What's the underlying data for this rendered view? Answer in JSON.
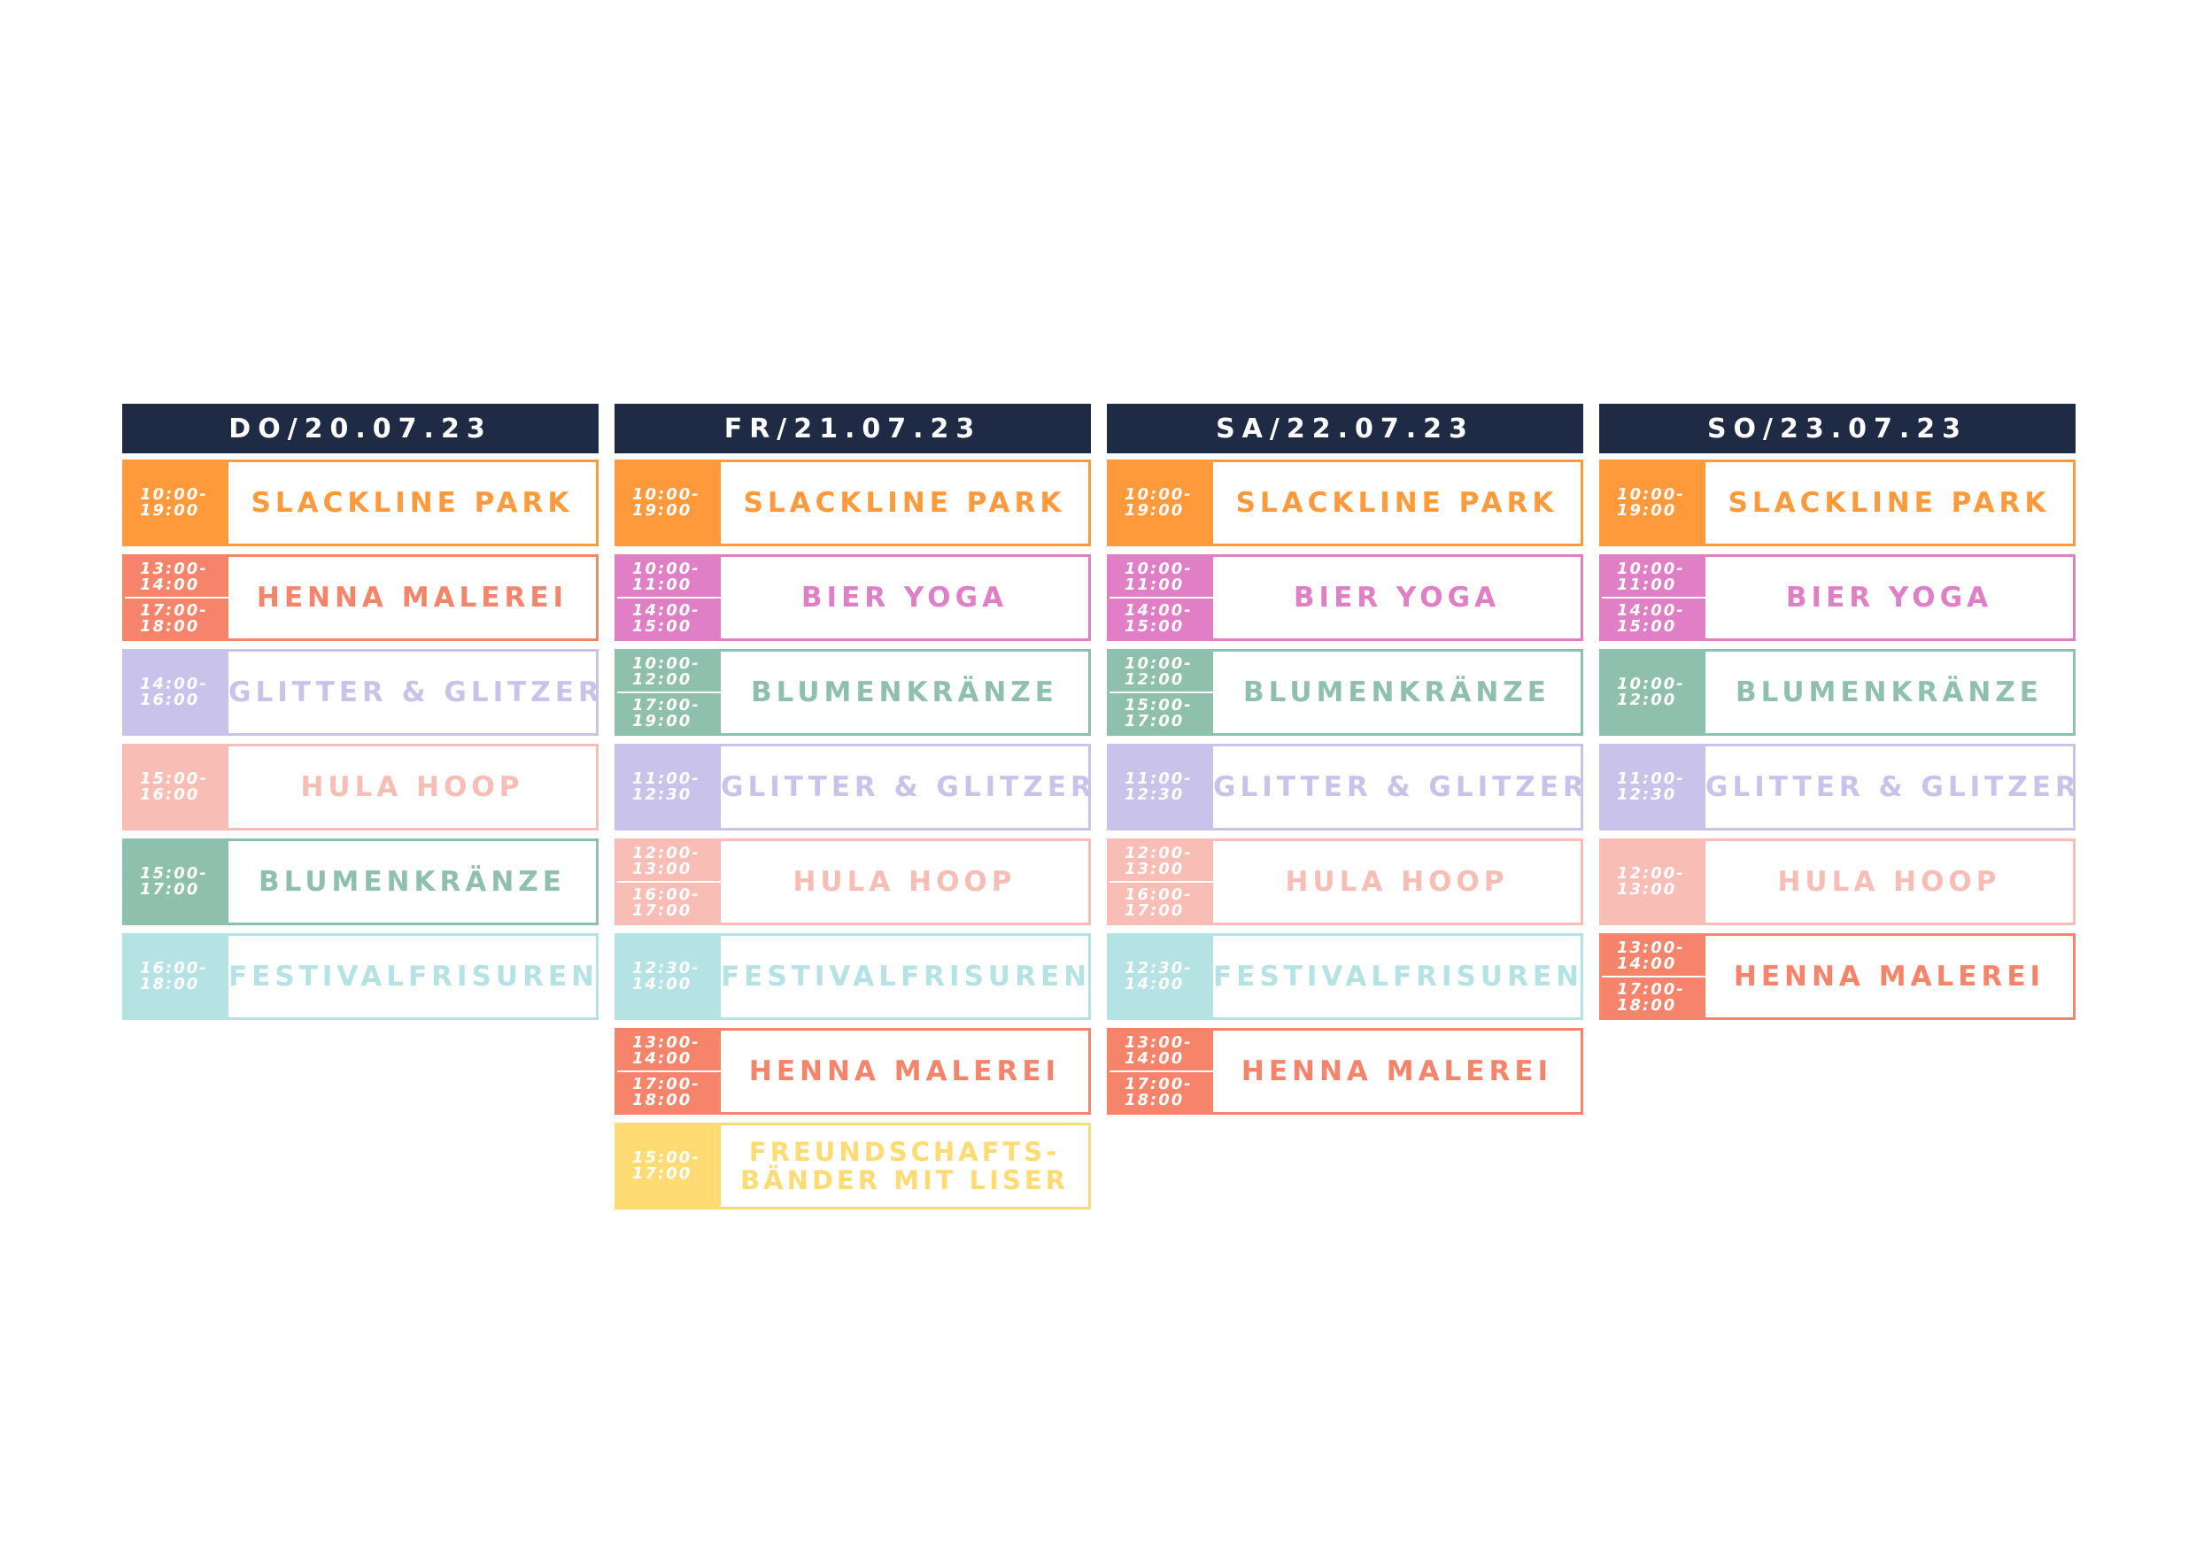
{
  "colors": {
    "header_bg": "#1f2a44",
    "slackline": "#ff9a3c",
    "henna": "#f5846a",
    "bier": "#e07fc5",
    "glitter": "#c9c3ec",
    "hula": "#f8bdb5",
    "blumen": "#8fc0ad",
    "festival": "#b5e2e3",
    "freundschaft": "#ffdc73"
  },
  "days": [
    {
      "label": "DO/20.07.23",
      "events": [
        {
          "name": [
            "SLACKLINE PARK"
          ],
          "color": "slackline",
          "slots": [
            [
              "10:00-",
              "19:00"
            ]
          ]
        },
        {
          "name": [
            "HENNA MALEREI"
          ],
          "color": "henna",
          "slots": [
            [
              "13:00-",
              "14:00"
            ],
            [
              "17:00-",
              "18:00"
            ]
          ]
        },
        {
          "name": [
            "GLITTER & GLITZER"
          ],
          "color": "glitter",
          "slots": [
            [
              "14:00-",
              "16:00"
            ]
          ]
        },
        {
          "name": [
            "HULA HOOP"
          ],
          "color": "hula",
          "slots": [
            [
              "15:00-",
              "16:00"
            ]
          ]
        },
        {
          "name": [
            "BLUMENKRÄNZE"
          ],
          "color": "blumen",
          "slots": [
            [
              "15:00-",
              "17:00"
            ]
          ]
        },
        {
          "name": [
            "FESTIVALFRISUREN"
          ],
          "color": "festival",
          "slots": [
            [
              "16:00-",
              "18:00"
            ]
          ]
        }
      ]
    },
    {
      "label": "FR/21.07.23",
      "events": [
        {
          "name": [
            "SLACKLINE PARK"
          ],
          "color": "slackline",
          "slots": [
            [
              "10:00-",
              "19:00"
            ]
          ]
        },
        {
          "name": [
            "BIER YOGA"
          ],
          "color": "bier",
          "slots": [
            [
              "10:00-",
              "11:00"
            ],
            [
              "14:00-",
              "15:00"
            ]
          ]
        },
        {
          "name": [
            "BLUMENKRÄNZE"
          ],
          "color": "blumen",
          "slots": [
            [
              "10:00-",
              "12:00"
            ],
            [
              "17:00-",
              "19:00"
            ]
          ]
        },
        {
          "name": [
            "GLITTER & GLITZER"
          ],
          "color": "glitter",
          "slots": [
            [
              "11:00-",
              "12:30"
            ]
          ]
        },
        {
          "name": [
            "HULA HOOP"
          ],
          "color": "hula",
          "slots": [
            [
              "12:00-",
              "13:00"
            ],
            [
              "16:00-",
              "17:00"
            ]
          ]
        },
        {
          "name": [
            "FESTIVALFRISUREN"
          ],
          "color": "festival",
          "slots": [
            [
              "12:30-",
              "14:00"
            ]
          ]
        },
        {
          "name": [
            "HENNA MALEREI"
          ],
          "color": "henna",
          "slots": [
            [
              "13:00-",
              "14:00"
            ],
            [
              "17:00-",
              "18:00"
            ]
          ]
        },
        {
          "name": [
            "FREUNDSCHAFTS-",
            "BÄNDER MIT LISER"
          ],
          "color": "freundschaft",
          "slots": [
            [
              "15:00-",
              "17:00"
            ]
          ]
        }
      ]
    },
    {
      "label": "SA/22.07.23",
      "events": [
        {
          "name": [
            "SLACKLINE PARK"
          ],
          "color": "slackline",
          "slots": [
            [
              "10:00-",
              "19:00"
            ]
          ]
        },
        {
          "name": [
            "BIER YOGA"
          ],
          "color": "bier",
          "slots": [
            [
              "10:00-",
              "11:00"
            ],
            [
              "14:00-",
              "15:00"
            ]
          ]
        },
        {
          "name": [
            "BLUMENKRÄNZE"
          ],
          "color": "blumen",
          "slots": [
            [
              "10:00-",
              "12:00"
            ],
            [
              "15:00-",
              "17:00"
            ]
          ]
        },
        {
          "name": [
            "GLITTER & GLITZER"
          ],
          "color": "glitter",
          "slots": [
            [
              "11:00-",
              "12:30"
            ]
          ]
        },
        {
          "name": [
            "HULA HOOP"
          ],
          "color": "hula",
          "slots": [
            [
              "12:00-",
              "13:00"
            ],
            [
              "16:00-",
              "17:00"
            ]
          ]
        },
        {
          "name": [
            "FESTIVALFRISUREN"
          ],
          "color": "festival",
          "slots": [
            [
              "12:30-",
              "14:00"
            ]
          ]
        },
        {
          "name": [
            "HENNA MALEREI"
          ],
          "color": "henna",
          "slots": [
            [
              "13:00-",
              "14:00"
            ],
            [
              "17:00-",
              "18:00"
            ]
          ]
        }
      ]
    },
    {
      "label": "SO/23.07.23",
      "events": [
        {
          "name": [
            "SLACKLINE PARK"
          ],
          "color": "slackline",
          "slots": [
            [
              "10:00-",
              "19:00"
            ]
          ]
        },
        {
          "name": [
            "BIER YOGA"
          ],
          "color": "bier",
          "slots": [
            [
              "10:00-",
              "11:00"
            ],
            [
              "14:00-",
              "15:00"
            ]
          ]
        },
        {
          "name": [
            "BLUMENKRÄNZE"
          ],
          "color": "blumen",
          "slots": [
            [
              "10:00-",
              "12:00"
            ]
          ]
        },
        {
          "name": [
            "GLITTER & GLITZER"
          ],
          "color": "glitter",
          "slots": [
            [
              "11:00-",
              "12:30"
            ]
          ]
        },
        {
          "name": [
            "HULA HOOP"
          ],
          "color": "hula",
          "slots": [
            [
              "12:00-",
              "13:00"
            ]
          ]
        },
        {
          "name": [
            "HENNA MALEREI"
          ],
          "color": "henna",
          "slots": [
            [
              "13:00-",
              "14:00"
            ],
            [
              "17:00-",
              "18:00"
            ]
          ]
        }
      ]
    }
  ]
}
